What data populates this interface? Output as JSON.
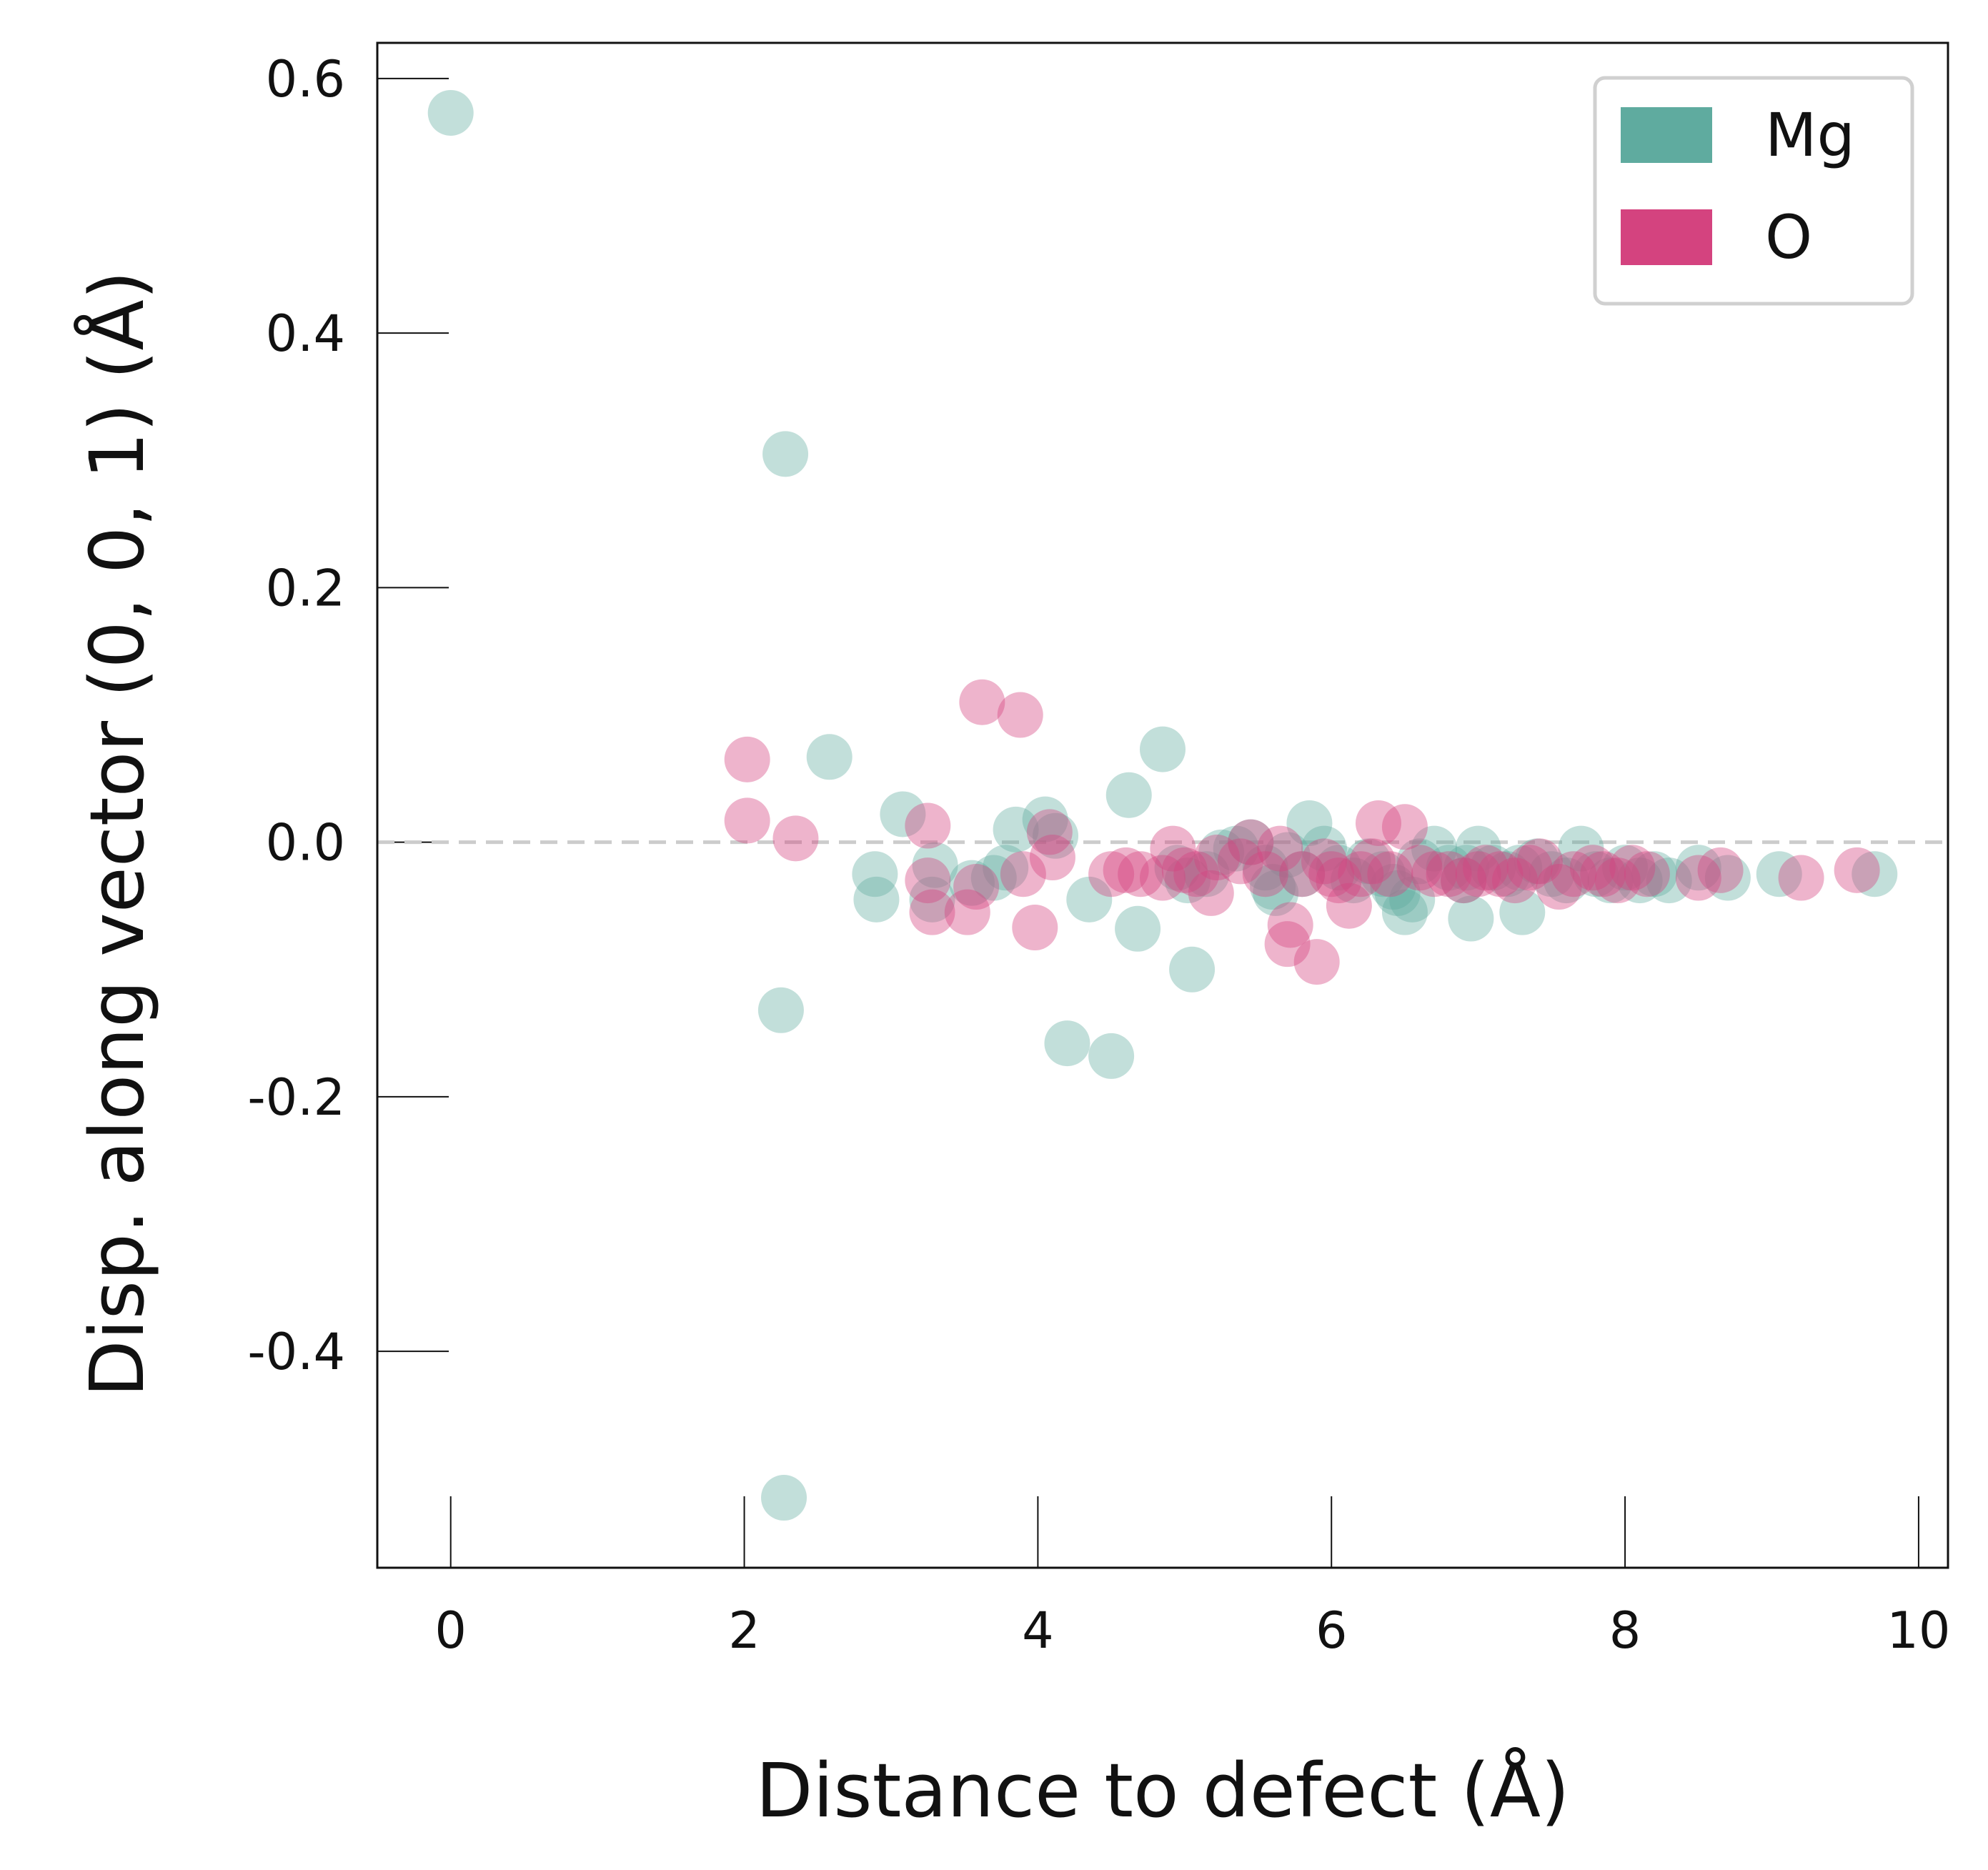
{
  "chart_data": {
    "type": "scatter",
    "xlabel": "Distance to defect (Å)",
    "ylabel": "Disp. along vector (0, 0, 1) (Å)",
    "xlim": [
      -0.5,
      10.2
    ],
    "ylim": [
      -0.57,
      0.628
    ],
    "xticks": [
      0,
      2,
      4,
      6,
      8,
      10
    ],
    "xtick_labels": [
      "0",
      "2",
      "4",
      "6",
      "8",
      "10"
    ],
    "yticks": [
      0.6,
      0.4,
      0.2,
      0.0,
      -0.2,
      -0.4
    ],
    "ytick_labels": [
      "0.6",
      "0.4",
      "0.2",
      "0.0",
      "-0.2",
      "-0.4"
    ],
    "grid": false,
    "reference_line": {
      "y": 0.0,
      "style": "dashed",
      "color": "#cccccc"
    },
    "legend": {
      "placement": "top-right",
      "entries": [
        "Mg",
        "O"
      ]
    },
    "series": [
      {
        "name": "Mg",
        "color": "#5fab9f",
        "x": [
          0.0,
          2.28,
          2.25,
          2.27,
          2.58,
          2.89,
          2.9,
          3.08,
          3.3,
          3.28,
          3.55,
          3.7,
          3.78,
          3.85,
          4.05,
          4.12,
          4.2,
          4.35,
          4.5,
          4.62,
          4.68,
          4.85,
          4.95,
          5.05,
          5.15,
          5.25,
          5.35,
          5.45,
          5.55,
          5.6,
          5.7,
          5.8,
          5.85,
          5.95,
          6.05,
          6.15,
          6.25,
          6.35,
          6.45,
          6.5,
          6.6,
          6.7,
          6.8,
          6.9,
          6.95,
          7.0,
          7.1,
          7.2,
          7.3,
          7.4,
          7.5,
          7.6,
          7.7,
          7.8,
          7.9,
          8.0,
          8.1,
          8.2,
          8.3,
          8.5,
          8.7,
          9.05,
          9.7,
          5.02,
          5.62,
          6.42,
          6.55,
          6.92,
          7.28
        ],
        "y": [
          0.573,
          0.305,
          -0.132,
          -0.515,
          0.067,
          -0.025,
          -0.045,
          0.022,
          -0.018,
          -0.045,
          -0.032,
          -0.028,
          -0.02,
          0.01,
          0.018,
          0.005,
          -0.158,
          -0.045,
          -0.168,
          0.037,
          -0.068,
          0.073,
          -0.02,
          -0.1,
          -0.025,
          -0.008,
          -0.005,
          0.0,
          -0.02,
          -0.035,
          -0.01,
          -0.025,
          0.015,
          -0.005,
          -0.02,
          -0.03,
          -0.015,
          -0.025,
          -0.04,
          -0.055,
          -0.015,
          -0.005,
          -0.02,
          -0.03,
          -0.06,
          -0.005,
          -0.02,
          -0.025,
          -0.055,
          -0.015,
          -0.025,
          -0.03,
          -0.005,
          -0.025,
          -0.03,
          -0.02,
          -0.03,
          -0.025,
          -0.03,
          -0.02,
          -0.028,
          -0.025,
          -0.025,
          -0.03,
          -0.04,
          -0.035,
          -0.045,
          -0.02,
          -0.02
        ]
      },
      {
        "name": "O",
        "color": "#d4437f",
        "x": [
          2.02,
          2.02,
          2.35,
          3.25,
          3.25,
          3.28,
          3.52,
          3.58,
          3.62,
          3.88,
          3.9,
          3.98,
          4.08,
          4.1,
          4.5,
          4.6,
          4.7,
          4.85,
          4.92,
          5.0,
          5.08,
          5.18,
          5.22,
          5.38,
          5.45,
          5.55,
          5.65,
          5.7,
          5.72,
          5.8,
          5.9,
          5.95,
          6.0,
          6.05,
          6.12,
          6.2,
          6.28,
          6.32,
          6.4,
          6.5,
          6.6,
          6.7,
          6.8,
          6.9,
          7.0,
          7.05,
          7.15,
          7.25,
          7.35,
          7.42,
          7.55,
          7.65,
          7.78,
          7.85,
          7.95,
          8.05,
          8.15,
          8.5,
          8.65,
          9.2,
          9.58
        ],
        "y": [
          0.065,
          0.017,
          0.003,
          0.013,
          -0.03,
          -0.055,
          -0.055,
          -0.035,
          0.11,
          0.1,
          -0.025,
          -0.067,
          0.008,
          -0.012,
          -0.025,
          -0.022,
          -0.025,
          -0.028,
          -0.005,
          -0.022,
          -0.025,
          -0.04,
          -0.012,
          -0.015,
          0.0,
          -0.025,
          -0.005,
          -0.08,
          -0.065,
          -0.025,
          -0.094,
          -0.015,
          -0.025,
          -0.03,
          -0.05,
          -0.025,
          -0.015,
          0.015,
          -0.025,
          0.012,
          -0.02,
          -0.025,
          -0.025,
          -0.03,
          -0.025,
          -0.02,
          -0.025,
          -0.03,
          -0.02,
          -0.015,
          -0.035,
          -0.025,
          -0.02,
          -0.025,
          -0.03,
          -0.02,
          -0.025,
          -0.028,
          -0.022,
          -0.028,
          -0.022
        ]
      }
    ]
  }
}
